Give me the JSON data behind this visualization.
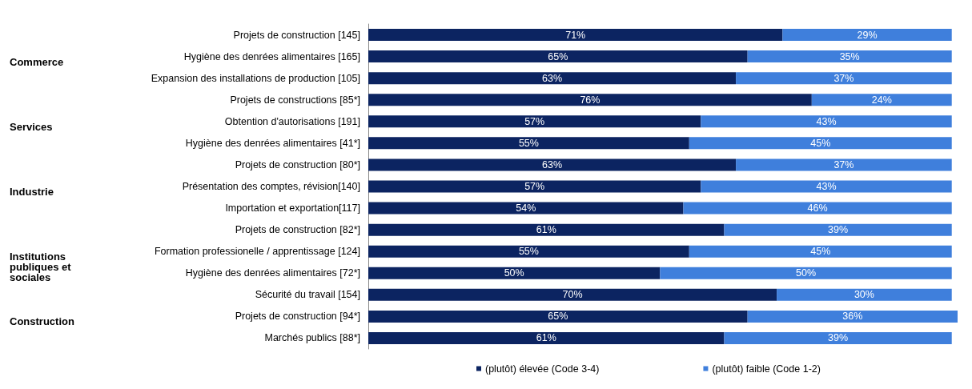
{
  "chart_data": {
    "type": "bar",
    "orientation": "horizontal",
    "stacked": true,
    "legend": "bottom",
    "marker": "square",
    "categories": [
      "Projets de construction [145]",
      "Hygiène des denrées alimentaires [165]",
      "Expansion des installations de production [105]",
      "Projets de constructions [85*]",
      "Obtention d'autorisations [191]",
      "Hygiène des denrées alimentaires [41*]",
      "Projets de construction [80*]",
      "Présentation des comptes, révision[140]",
      "Importation et exportation[117]",
      "Projets de construction [82*]",
      "Formation professionelle / apprentissage [124]",
      "Hygiène des denrées alimentaires [72*]",
      "Sécurité du travail [154]",
      "Projets de construction [94*]",
      "Marchés publics [88*]"
    ],
    "series": [
      {
        "name": "(plutôt) élevée (Code 3-4)",
        "color": "#0c2461",
        "values": [
          71,
          65,
          63,
          76,
          57,
          55,
          63,
          57,
          54,
          61,
          55,
          50,
          70,
          65,
          61
        ],
        "value_labels": [
          "71%",
          "65%",
          "63%",
          "76%",
          "57%",
          "55%",
          "63%",
          "57%",
          "54%",
          "61%",
          "55%",
          "50%",
          "70%",
          "65%",
          "61%"
        ]
      },
      {
        "name": "(plutôt) faible (Code 1-2)",
        "color": "#3f7fdc",
        "values": [
          29,
          35,
          37,
          24,
          43,
          45,
          37,
          43,
          46,
          39,
          45,
          50,
          30,
          36,
          39
        ],
        "value_labels": [
          "29%",
          "35%",
          "37%",
          "24%",
          "43%",
          "45%",
          "37%",
          "43%",
          "46%",
          "39%",
          "45%",
          "50%",
          "30%",
          "36%",
          "39%"
        ]
      }
    ],
    "annotations": [
      "Commerce",
      "Services",
      "Industrie",
      "Institutions publiques et sociales",
      "Construction"
    ]
  }
}
